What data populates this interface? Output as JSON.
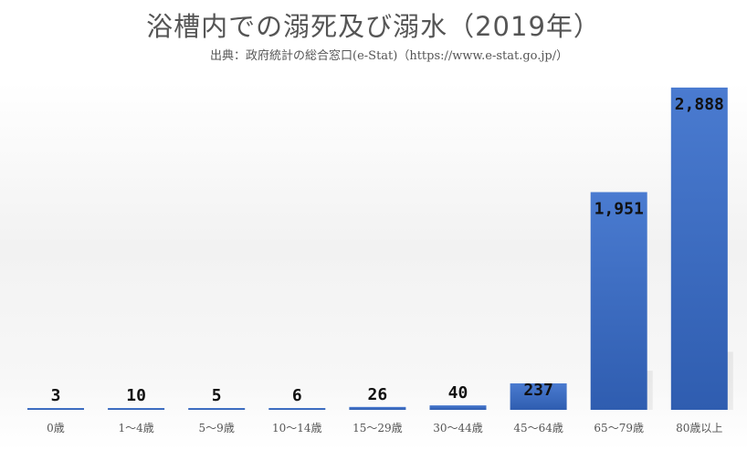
{
  "chart_data": {
    "type": "bar",
    "title": "浴槽内での溺死及び溺水（2019年）",
    "subtitle": "出典：政府統計の総合窓口(e-Stat)（https://www.e-stat.go.jp/）",
    "categories": [
      "0歳",
      "1～4歳",
      "5～9歳",
      "10～14歳",
      "15～29歳",
      "30～44歳",
      "45～64歳",
      "65～79歳",
      "80歳以上"
    ],
    "values": [
      3,
      10,
      5,
      6,
      26,
      40,
      237,
      1951,
      2888
    ],
    "value_labels": [
      "3",
      "10",
      "5",
      "6",
      "26",
      "40",
      "237",
      "1,951",
      "2,888"
    ],
    "ylim": [
      0,
      3100
    ],
    "grid": false,
    "bar_color": "#3e6ec2"
  }
}
